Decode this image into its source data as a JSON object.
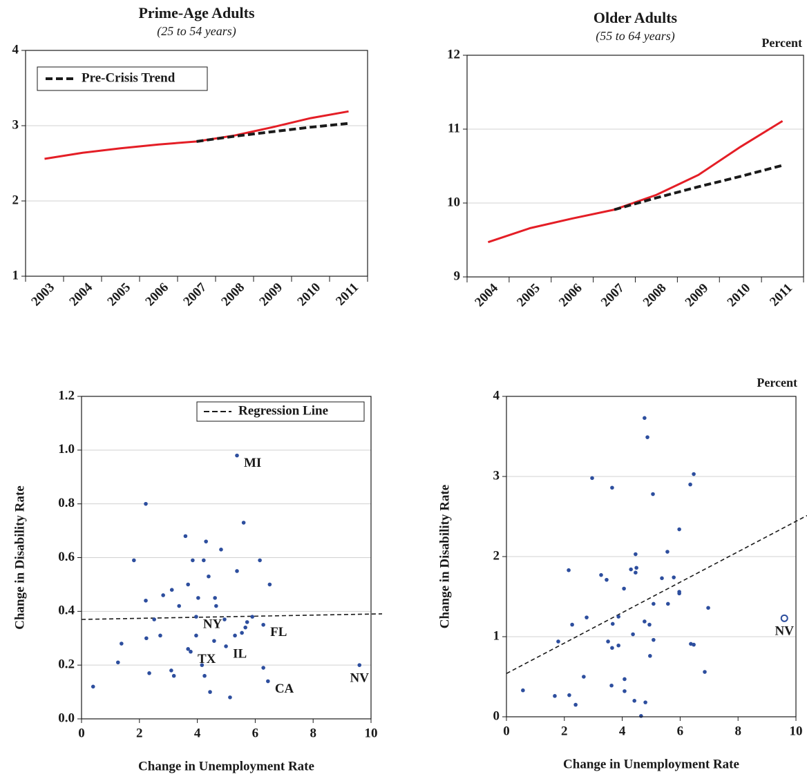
{
  "chart_data": [
    {
      "type": "line",
      "title": "Prime-Age Adults",
      "subtitle": "(25 to 54 years)",
      "categories": [
        "2003",
        "2004",
        "2005",
        "2006",
        "2007",
        "2008",
        "2009",
        "2010",
        "2011"
      ],
      "series": [
        {
          "color": "#e41e26",
          "values": [
            2.56,
            2.64,
            2.7,
            2.75,
            2.79,
            2.87,
            2.98,
            3.1,
            3.19
          ]
        },
        {
          "name": "Pre-Crisis Trend",
          "color": "#1a1a1a",
          "dashed": true,
          "values": [
            null,
            null,
            null,
            null,
            2.79,
            2.86,
            2.92,
            2.98,
            3.03
          ]
        }
      ],
      "ylim": [
        1,
        4
      ],
      "yticks": [
        1,
        2,
        3,
        4
      ],
      "grid": true,
      "legend": "top-left"
    },
    {
      "type": "line",
      "title": "Older Adults",
      "subtitle": "(55 to 64 years)",
      "unit": "Percent",
      "categories": [
        "2004",
        "2005",
        "2006",
        "2007",
        "2008",
        "2009",
        "2010",
        "2011"
      ],
      "series": [
        {
          "color": "#e41e26",
          "values": [
            9.47,
            9.66,
            9.79,
            9.91,
            10.11,
            10.38,
            10.76,
            11.11
          ]
        },
        {
          "color": "#1a1a1a",
          "dashed": true,
          "values": [
            null,
            null,
            null,
            9.91,
            10.07,
            10.22,
            10.36,
            10.51
          ]
        }
      ],
      "ylim": [
        9,
        12
      ],
      "yticks": [
        9,
        10,
        11,
        12
      ],
      "grid": true
    },
    {
      "type": "scatter",
      "x_label": "Change in Unemployment Rate",
      "y_label": "Change in Disability Rate",
      "points": {
        "color": "#2d4e9e",
        "x": [
          0.4,
          1.26,
          1.38,
          1.81,
          2.22,
          2.22,
          2.24,
          2.34,
          2.51,
          2.72,
          2.82,
          3.12,
          3.1,
          3.19,
          3.37,
          3.59,
          3.68,
          3.68,
          3.77,
          3.84,
          3.96,
          3.96,
          4.03,
          4.16,
          4.22,
          4.25,
          4.3,
          4.39,
          4.44,
          4.58,
          4.61,
          4.65,
          4.82,
          4.94,
          4.99,
          5.13,
          5.3,
          5.37,
          5.37,
          5.54,
          5.6,
          5.66,
          5.72,
          5.9,
          6.16,
          6.28,
          6.28,
          6.44,
          6.5,
          9.6
        ],
        "y": [
          0.12,
          0.21,
          0.28,
          0.59,
          0.8,
          0.44,
          0.3,
          0.17,
          0.37,
          0.31,
          0.46,
          0.48,
          0.18,
          0.16,
          0.42,
          0.68,
          0.5,
          0.26,
          0.25,
          0.59,
          0.38,
          0.31,
          0.45,
          0.2,
          0.59,
          0.16,
          0.66,
          0.53,
          0.1,
          0.29,
          0.45,
          0.42,
          0.63,
          0.37,
          0.27,
          0.08,
          0.31,
          0.98,
          0.55,
          0.32,
          0.73,
          0.34,
          0.36,
          0.38,
          0.59,
          0.35,
          0.19,
          0.14,
          0.5,
          0.2
        ],
        "labels": [
          null,
          null,
          null,
          null,
          null,
          null,
          null,
          null,
          null,
          null,
          null,
          null,
          null,
          null,
          null,
          null,
          null,
          null,
          "TX",
          null,
          "NY",
          null,
          null,
          null,
          null,
          null,
          null,
          null,
          null,
          null,
          null,
          null,
          null,
          null,
          "IL",
          null,
          null,
          "MI",
          null,
          null,
          null,
          null,
          null,
          null,
          null,
          "FL",
          null,
          "CA",
          null,
          "NV"
        ]
      },
      "fit": {
        "name": "Regression Line",
        "color": "#1a1a1a",
        "x": [
          0,
          10
        ],
        "values": [
          0.37,
          0.39
        ]
      },
      "xlim": [
        0,
        10
      ],
      "xticks": [
        0,
        2,
        4,
        6,
        8,
        10
      ],
      "ylim": [
        0,
        1.2
      ],
      "yticks": [
        {
          "value": 0,
          "label": "0.0"
        },
        0.2,
        0.4,
        0.6,
        0.8,
        {
          "value": 1,
          "label": "1.0"
        },
        1.2
      ],
      "grid": true,
      "legend": "top-right"
    },
    {
      "type": "scatter",
      "x_label": "Change in Unemployment Rate",
      "y_label": "Change in Disability Rate",
      "unit": "Percent",
      "points": {
        "color": "#2d4e9e",
        "x": [
          0.57,
          1.67,
          1.79,
          2.15,
          2.17,
          2.27,
          2.39,
          2.67,
          2.77,
          2.96,
          3.27,
          3.46,
          3.51,
          3.63,
          3.65,
          3.65,
          3.67,
          3.87,
          3.87,
          4.06,
          4.08,
          4.08,
          4.3,
          4.37,
          4.42,
          4.46,
          4.49,
          4.46,
          4.65,
          4.77,
          4.77,
          4.8,
          4.87,
          4.94,
          4.96,
          5.06,
          5.08,
          5.08,
          5.37,
          5.56,
          5.58,
          5.78,
          5.97,
          5.97,
          5.97,
          6.35,
          6.37,
          6.47,
          6.47,
          6.85,
          6.97,
          9.6
        ],
        "y": [
          0.33,
          0.26,
          0.94,
          1.83,
          0.27,
          1.15,
          0.15,
          0.5,
          1.24,
          2.98,
          1.77,
          1.71,
          0.94,
          0.39,
          2.86,
          0.86,
          1.16,
          1.25,
          0.89,
          1.6,
          0.47,
          0.32,
          1.84,
          1.03,
          0.2,
          1.8,
          1.86,
          2.03,
          0.01,
          3.73,
          1.19,
          0.18,
          3.49,
          1.15,
          0.76,
          2.78,
          1.41,
          0.96,
          1.73,
          2.06,
          1.41,
          1.74,
          2.34,
          1.56,
          1.54,
          2.9,
          0.91,
          3.03,
          0.9,
          0.56,
          1.36,
          1.23
        ],
        "labels": [
          null,
          null,
          null,
          null,
          null,
          null,
          null,
          null,
          null,
          null,
          null,
          null,
          null,
          null,
          null,
          null,
          null,
          null,
          null,
          null,
          null,
          null,
          null,
          null,
          null,
          null,
          null,
          null,
          null,
          null,
          null,
          null,
          null,
          null,
          null,
          null,
          null,
          null,
          null,
          null,
          null,
          null,
          null,
          null,
          null,
          null,
          null,
          null,
          null,
          null,
          null,
          "NV"
        ]
      },
      "labeled_marker": "hollow",
      "fit": {
        "color": "#1a1a1a",
        "x": [
          0,
          10
        ],
        "values": [
          0.54,
          2.44
        ]
      },
      "xlim": [
        0,
        10
      ],
      "xticks": [
        0,
        2,
        4,
        6,
        8,
        10
      ],
      "ylim": [
        0,
        4
      ],
      "yticks": [
        0,
        1,
        2,
        3,
        4
      ],
      "grid": true
    }
  ]
}
